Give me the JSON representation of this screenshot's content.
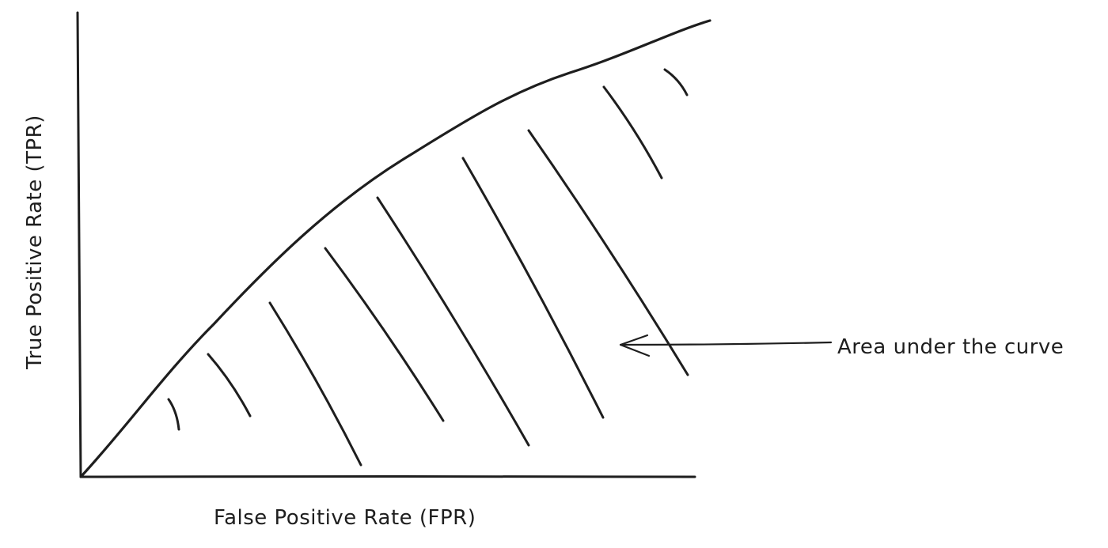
{
  "diagram": {
    "type": "roc-curve-sketch",
    "x_axis_label": "False Positive Rate (FPR)",
    "y_axis_label": "True Positive Rate (TPR)",
    "annotation": "Area under the curve",
    "stroke_color": "#1e1e1e",
    "background": "#ffffff"
  }
}
